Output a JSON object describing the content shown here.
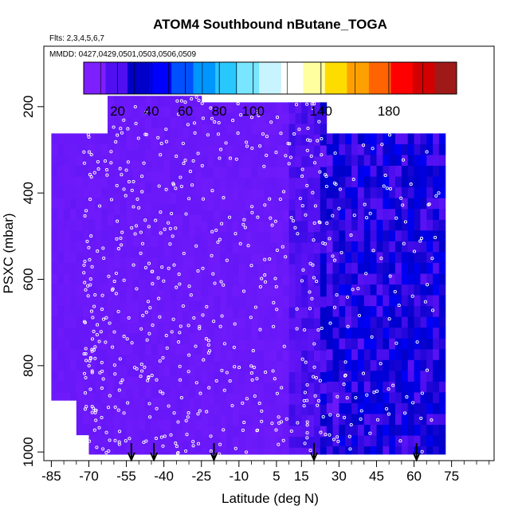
{
  "chart_data": {
    "type": "heatmap",
    "title": "ATOM4 Southbound nButane_TOGA",
    "subtitle": "Flts: 2,3,4,5,6,7",
    "annotation": "MMDD: 0427,0429,0501,0503,0506,0509",
    "xlabel": "Latitude (deg N)",
    "ylabel": "PSXC (mbar)",
    "xlim": [
      -88,
      92
    ],
    "ylim": [
      1020,
      60
    ],
    "x_ticks": [
      -85,
      -70,
      -55,
      -40,
      -25,
      -10,
      5,
      15,
      30,
      45,
      60,
      75
    ],
    "y_ticks": [
      200,
      400,
      600,
      800,
      1000
    ],
    "colorbar": {
      "range": [
        0,
        220
      ],
      "tick_values": [
        20,
        40,
        60,
        80,
        100,
        140,
        180
      ],
      "colors": [
        "#7d1fff",
        "#4f0ff0",
        "#0000c8",
        "#0000ff",
        "#0050ff",
        "#0096ff",
        "#28c8ff",
        "#78e6ff",
        "#c8f4ff",
        "#ffffff",
        "#ffffa0",
        "#ffdc00",
        "#ffa000",
        "#ff6400",
        "#ff0000",
        "#d20000",
        "#a01919"
      ]
    },
    "flight_marker_latitudes": [
      -53,
      -44,
      -20,
      20,
      61
    ],
    "value_bands": [
      {
        "lat_range": [
          -85,
          10
        ],
        "value": 5
      },
      {
        "lat_range": [
          10,
          22
        ],
        "value": 8
      },
      {
        "lat_range": [
          22,
          30
        ],
        "value": 20
      },
      {
        "lat_range": [
          30,
          72
        ],
        "value": 25
      }
    ]
  }
}
